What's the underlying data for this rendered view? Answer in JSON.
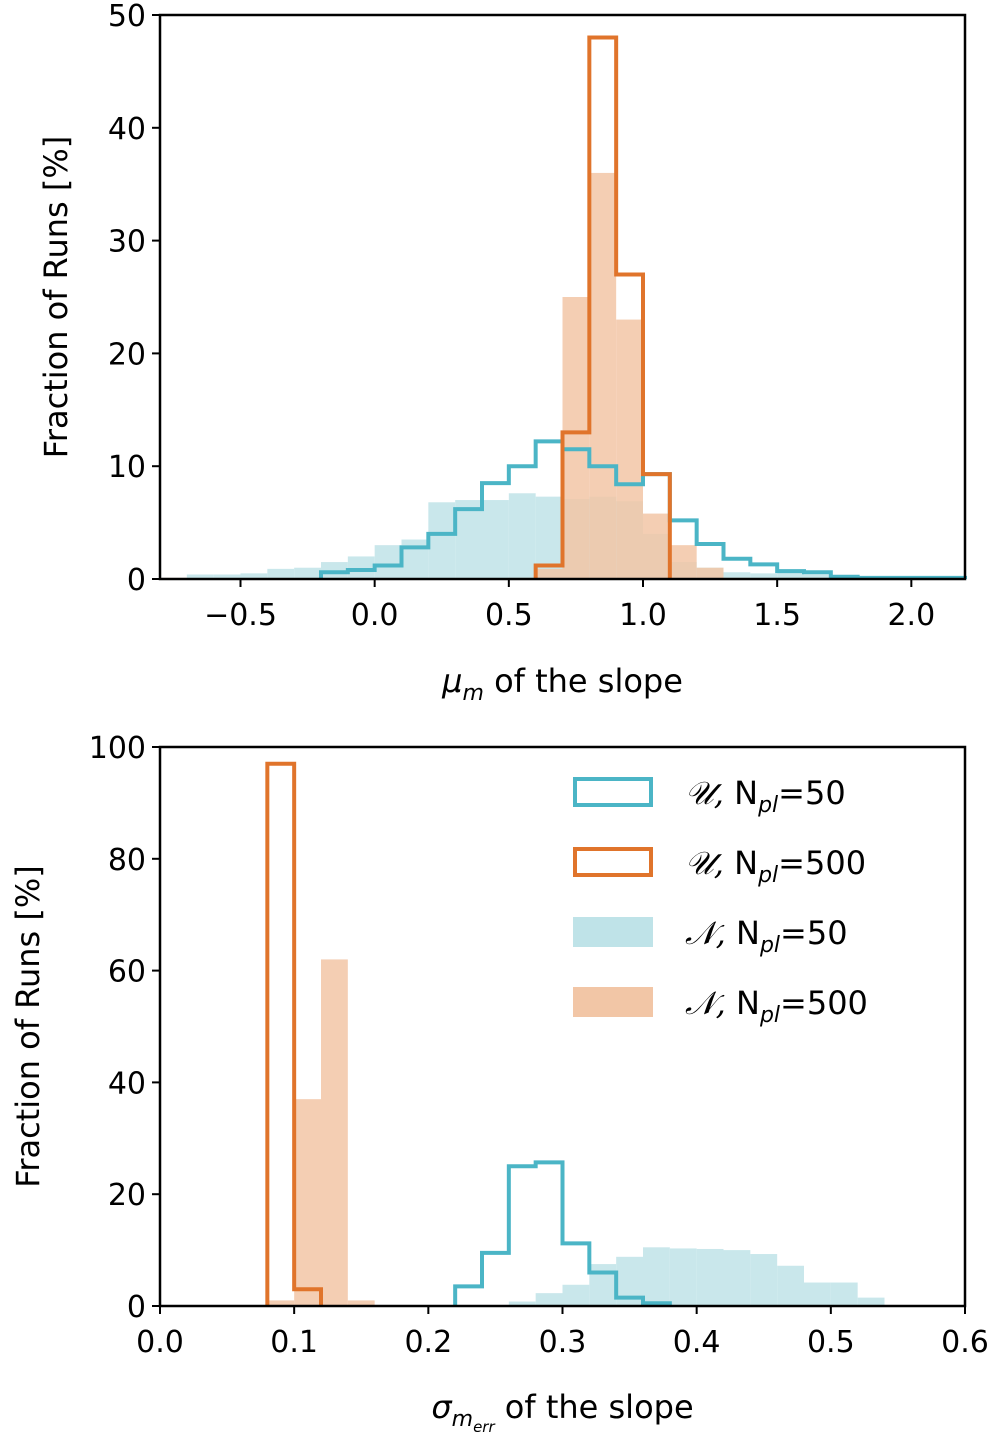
{
  "colors": {
    "cyan_line": "#4bb5c6",
    "orange_line": "#e0742b",
    "cyan_fill": "#bfe3e8",
    "orange_fill": "#f2c6a6"
  },
  "chart_data": [
    {
      "type": "histogram",
      "title": "",
      "xlabel_symbol": "μ",
      "xlabel_sub": "m",
      "xlabel_rest": " of the slope",
      "ylabel": "Fraction of Runs [%]",
      "xlim": [
        -0.8,
        2.2
      ],
      "ylim": [
        0,
        50
      ],
      "xticks": [
        -0.5,
        0.0,
        0.5,
        1.0,
        1.5,
        2.0
      ],
      "xtick_labels": [
        "−0.5",
        "0.0",
        "0.5",
        "1.0",
        "1.5",
        "2.0"
      ],
      "yticks": [
        0,
        10,
        20,
        30,
        40,
        50
      ],
      "ytick_labels": [
        "0",
        "10",
        "20",
        "30",
        "40",
        "50"
      ],
      "series": [
        {
          "name": "N, Npl=50",
          "style": "filled",
          "color": "cyan_fill",
          "bin_edges": [
            -0.7,
            -0.6,
            -0.5,
            -0.4,
            -0.3,
            -0.2,
            -0.1,
            0.0,
            0.1,
            0.2,
            0.3,
            0.4,
            0.5,
            0.6,
            0.7,
            0.8,
            0.9,
            1.0,
            1.1,
            1.2,
            1.3,
            1.4,
            1.5,
            1.6,
            1.7,
            1.8,
            1.9,
            2.0
          ],
          "values": [
            0.4,
            0.4,
            0.5,
            0.9,
            1.0,
            1.5,
            2.0,
            3.0,
            3.5,
            6.8,
            7.0,
            7.0,
            7.6,
            7.3,
            7.1,
            7.3,
            6.9,
            4.0,
            1.5,
            1.0,
            0.6,
            0.5,
            0.6,
            0.4,
            0.2,
            0.1,
            0.1
          ]
        },
        {
          "name": "N, Npl=500",
          "style": "filled",
          "color": "orange_fill",
          "bin_edges": [
            -0.8,
            -0.7,
            -0.6,
            -0.5,
            -0.4,
            -0.3,
            -0.2,
            -0.1,
            0.0,
            0.1,
            0.2,
            0.3,
            0.4,
            0.5,
            0.6,
            0.7,
            0.8,
            0.9,
            1.0,
            1.1,
            1.2,
            1.3,
            1.4,
            1.5,
            1.6,
            1.7,
            1.8,
            1.9,
            2.0,
            2.1,
            2.2
          ],
          "values": [
            0.1,
            0,
            0,
            0,
            0,
            0,
            0,
            0,
            0,
            0,
            0,
            0,
            0,
            0.1,
            0.9,
            25.0,
            36.0,
            23.0,
            5.8,
            3.0,
            1.0,
            0.1,
            0,
            0,
            0,
            0,
            0,
            0.1,
            0.1,
            0.1
          ]
        },
        {
          "name": "U, Npl=50",
          "style": "step",
          "color": "cyan_line",
          "bin_edges": [
            -0.2,
            -0.1,
            0.0,
            0.1,
            0.2,
            0.3,
            0.4,
            0.5,
            0.6,
            0.7,
            0.8,
            0.9,
            1.0,
            1.1,
            1.2,
            1.3,
            1.4,
            1.5,
            1.6,
            1.7,
            1.8,
            1.9,
            2.0,
            2.1,
            2.2
          ],
          "values": [
            0.6,
            0.8,
            1.2,
            2.8,
            4.0,
            6.2,
            8.5,
            10.0,
            12.2,
            11.5,
            10.0,
            8.4,
            9.3,
            5.2,
            3.1,
            1.8,
            1.3,
            0.7,
            0.6,
            0.2,
            0.1,
            0.1,
            0.1,
            0.1
          ]
        },
        {
          "name": "U, Npl=500",
          "style": "step",
          "color": "orange_line",
          "bin_edges": [
            0.6,
            0.7,
            0.8,
            0.9,
            1.0,
            1.1
          ],
          "values": [
            1.2,
            13.0,
            48.0,
            27.0,
            9.3
          ]
        }
      ]
    },
    {
      "type": "histogram",
      "title": "",
      "xlabel_symbol": "σ",
      "xlabel_sub": "m",
      "xlabel_subsub": "err",
      "xlabel_rest": " of the slope",
      "ylabel": "Fraction of Runs [%]",
      "xlim": [
        0.0,
        0.6
      ],
      "ylim": [
        0,
        100
      ],
      "xticks": [
        0.0,
        0.1,
        0.2,
        0.3,
        0.4,
        0.5,
        0.6
      ],
      "xtick_labels": [
        "0.0",
        "0.1",
        "0.2",
        "0.3",
        "0.4",
        "0.5",
        "0.6"
      ],
      "yticks": [
        0,
        20,
        40,
        60,
        80,
        100
      ],
      "ytick_labels": [
        "0",
        "20",
        "40",
        "60",
        "80",
        "100"
      ],
      "legend_position": "upper-right",
      "series": [
        {
          "name": "N, Npl=50",
          "style": "filled",
          "color": "cyan_fill",
          "bin_edges": [
            0.26,
            0.28,
            0.3,
            0.32,
            0.34,
            0.36,
            0.38,
            0.4,
            0.42,
            0.44,
            0.46,
            0.48,
            0.5,
            0.52,
            0.54
          ],
          "values": [
            0.8,
            2.3,
            3.8,
            7.5,
            8.8,
            10.5,
            10.3,
            10.2,
            10.0,
            9.3,
            7.2,
            4.2,
            4.2,
            1.5
          ]
        },
        {
          "name": "N, Npl=500",
          "style": "filled",
          "color": "orange_fill",
          "bin_edges": [
            0.08,
            0.1,
            0.12,
            0.14,
            0.16
          ],
          "values": [
            1.0,
            37.0,
            62.0,
            1.0
          ]
        },
        {
          "name": "U, Npl=50",
          "style": "step",
          "color": "cyan_line",
          "bin_edges": [
            0.22,
            0.24,
            0.26,
            0.28,
            0.3,
            0.32,
            0.34,
            0.36,
            0.38
          ],
          "values": [
            3.5,
            9.5,
            25.0,
            25.7,
            11.2,
            6.0,
            1.5,
            0.5
          ]
        },
        {
          "name": "U, Npl=500",
          "style": "step",
          "color": "orange_line",
          "bin_edges": [
            0.08,
            0.1,
            0.12
          ],
          "values": [
            97.0,
            3.0
          ]
        }
      ],
      "legend": [
        {
          "symbol": "𝒰,",
          "label": "N",
          "sub": "pl",
          "value": "=50",
          "style": "step",
          "color": "cyan_line"
        },
        {
          "symbol": "𝒰,",
          "label": "N",
          "sub": "pl",
          "value": "=500",
          "style": "step",
          "color": "orange_line"
        },
        {
          "symbol": "𝒩,",
          "label": "N",
          "sub": "pl",
          "value": "=50",
          "style": "filled",
          "color": "cyan_fill"
        },
        {
          "symbol": "𝒩,",
          "label": "N",
          "sub": "pl",
          "value": "=500",
          "style": "filled",
          "color": "orange_fill"
        }
      ]
    }
  ]
}
